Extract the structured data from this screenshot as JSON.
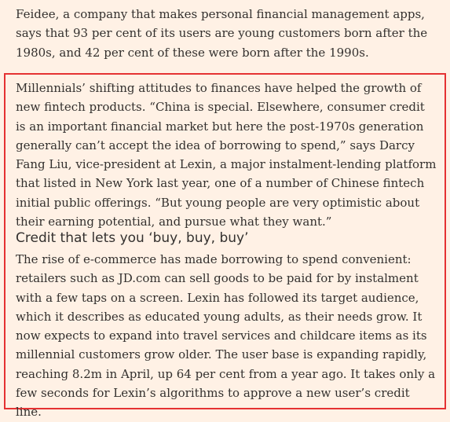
{
  "article": {
    "intro": "Feidee, a company that makes personal financial management apps, says that 93 per cent of its users are young customers born after the 1980s, and 42 per cent of these were born after the 1990s.",
    "highlight": {
      "paragraph": "Millennials’ shifting attitudes to finances have helped the growth of new fintech products. “China is special. Elsewhere, consumer credit is an important financial market but here the post-1970s generation generally can’t accept the idea of borrowing to spend,” says Darcy Fang Liu, vice-president at Lexin, a major instalment-lending platform that listed in New York last year, one of a number of Chinese fintech initial public offerings. “But young people are very optimistic about their earning potential, and pursue what they want.”",
      "subheading": "Credit that lets you ‘buy, buy, buy’",
      "body": "The rise of e-commerce has made borrowing to spend convenient: retailers such as JD.com can sell goods to be paid for by instalment with a few taps on a screen. Lexin has followed its target audience, which it describes as educated young adults, as their needs grow. It now expects to expand into travel services and childcare items as its millennial customers grow older. The user base is expanding rapidly, reaching 8.2m in April, up 64 per cent from a year ago. It takes only a few seconds for Lexin’s algorithms to approve a new user’s credit line."
    }
  },
  "colors": {
    "page_background": "#fff1e5",
    "text": "#33302e",
    "highlight_border": "#e53232"
  }
}
